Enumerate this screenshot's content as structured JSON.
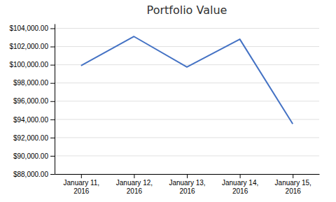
{
  "chart_data": {
    "type": "line",
    "title": "Portfolio Value",
    "categories": [
      "January 11,\n2016",
      "January 12,\n2016",
      "January 13,\n2016",
      "January 14,\n2016",
      "January 15,\n2016"
    ],
    "values": [
      99900,
      103100,
      99750,
      102800,
      93500
    ],
    "color": "#4472C4",
    "ylim": [
      88000,
      104500
    ],
    "yticks": [
      {
        "value": 88000,
        "label": "$88,000.00"
      },
      {
        "value": 90000,
        "label": "$90,000.00"
      },
      {
        "value": 92000,
        "label": "$92,000.00"
      },
      {
        "value": 94000,
        "label": "$94,000.00"
      },
      {
        "value": 96000,
        "label": "$96,000.00"
      },
      {
        "value": 98000,
        "label": "$98,000.00"
      },
      {
        "value": 100000,
        "label": "$100,000.00"
      },
      {
        "value": 102000,
        "label": "$102,000.00"
      },
      {
        "value": 104000,
        "label": "$104,000.00"
      }
    ],
    "grid": true
  }
}
